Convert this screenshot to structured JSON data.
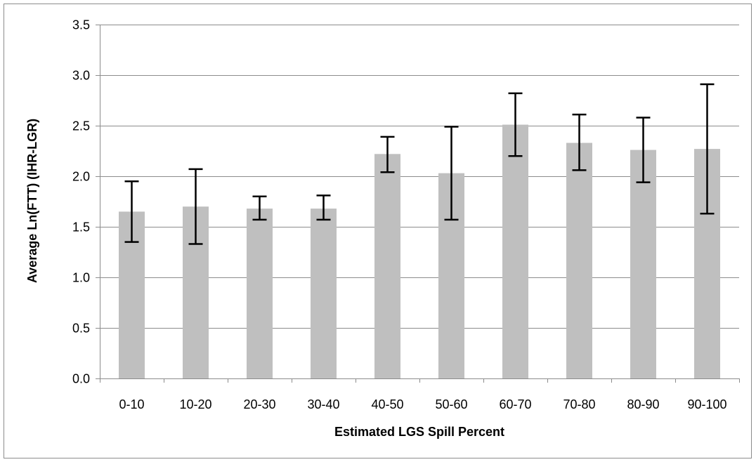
{
  "chart_data": {
    "type": "bar",
    "title": "",
    "xlabel": "Estimated LGS Spill Percent",
    "ylabel": "Average Ln(FTT) (IHR-LGR)",
    "ylim": [
      0,
      3.5
    ],
    "yticks": [
      "0.0",
      "0.5",
      "1.0",
      "1.5",
      "2.0",
      "2.5",
      "3.0",
      "3.5"
    ],
    "ytick_values": [
      0,
      0.5,
      1.0,
      1.5,
      2.0,
      2.5,
      3.0,
      3.5
    ],
    "grid": true,
    "legend": "none",
    "categories": [
      "0-10",
      "10-20",
      "20-30",
      "30-40",
      "40-50",
      "50-60",
      "60-70",
      "70-80",
      "80-90",
      "90-100"
    ],
    "values": [
      1.65,
      1.7,
      1.68,
      1.68,
      2.22,
      2.03,
      2.51,
      2.33,
      2.26,
      2.27
    ],
    "error_low": [
      1.35,
      1.33,
      1.57,
      1.57,
      2.04,
      1.57,
      2.2,
      2.06,
      1.94,
      1.63
    ],
    "error_high": [
      1.95,
      2.07,
      1.8,
      1.81,
      2.39,
      2.49,
      2.82,
      2.61,
      2.58,
      2.91
    ],
    "colors": {
      "bar": "#bfbfbf",
      "error_bar": "#000000",
      "gridline": "#8c8c8c",
      "axis": "#8c8c8c"
    }
  }
}
